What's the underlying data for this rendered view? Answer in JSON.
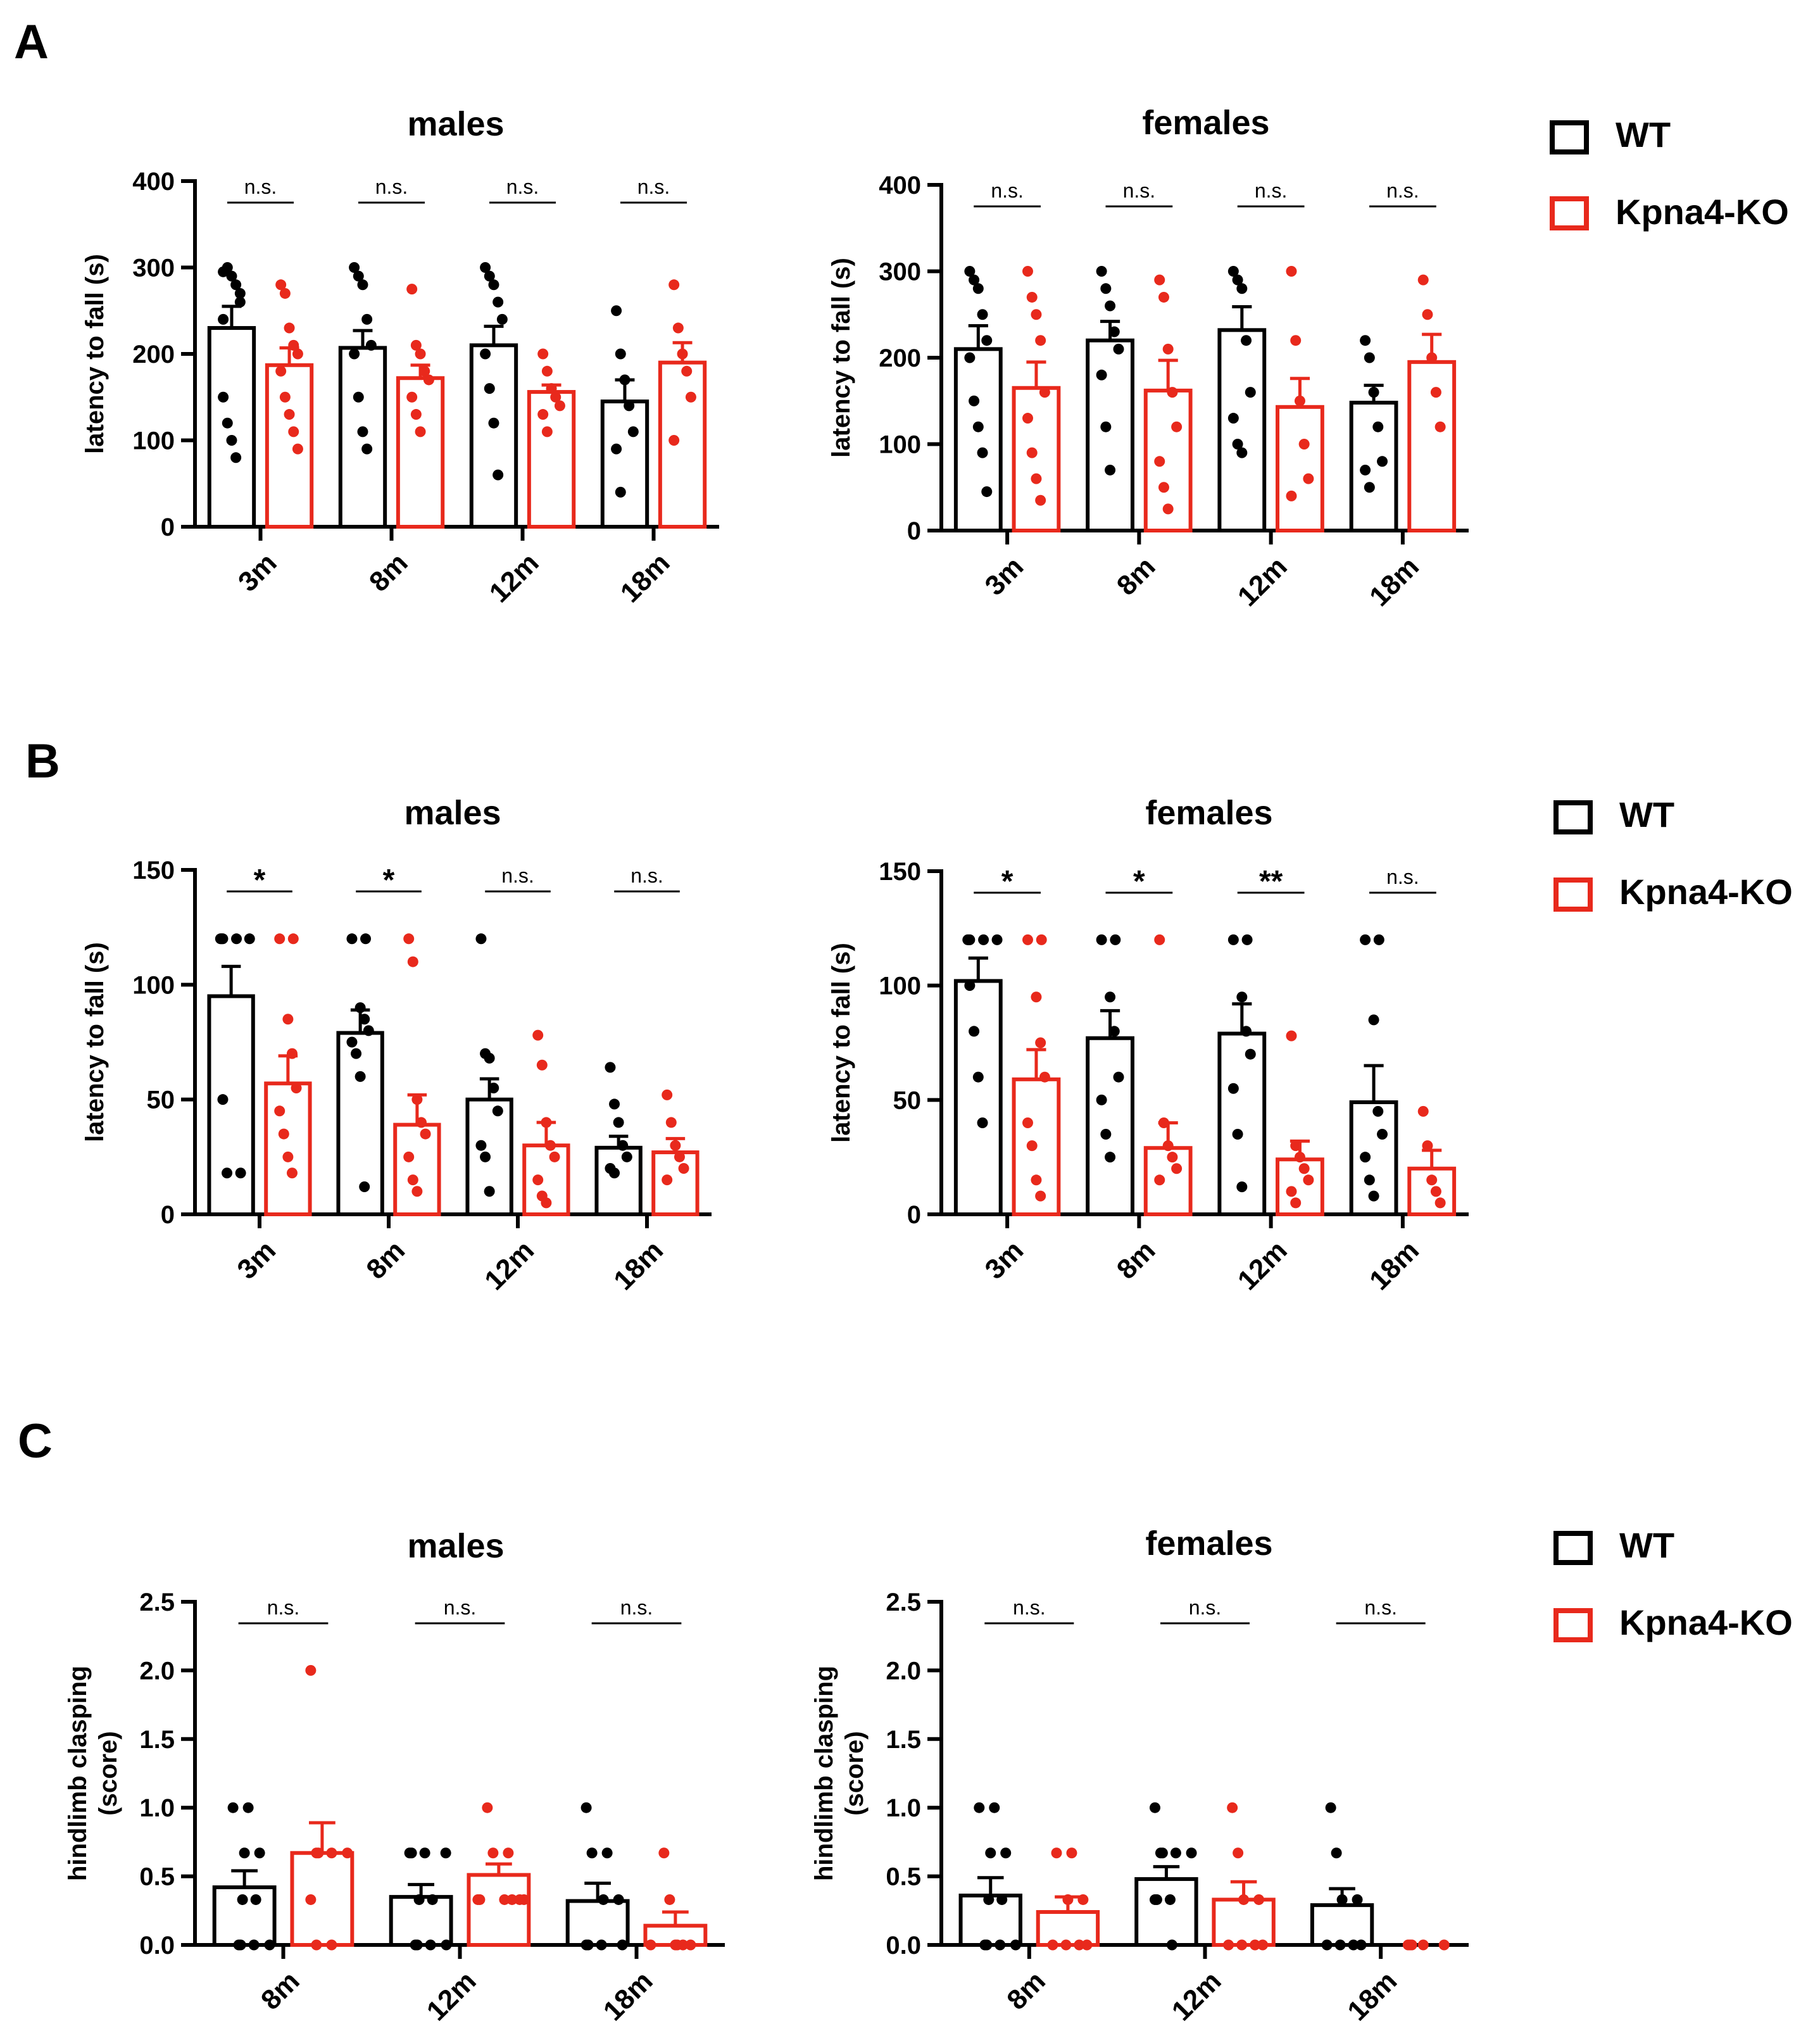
{
  "colors": {
    "wt": "#000000",
    "ko": "#e8291c"
  },
  "panel_labels": [
    "A",
    "B",
    "C"
  ],
  "legend": {
    "wt_label": "WT",
    "ko_label": "Kpna4-KO"
  },
  "chart_data": [
    {
      "id": "A-males",
      "type": "bar",
      "panel": "A",
      "title": "males",
      "ylabel": "latency to fall (s)",
      "ylim": [
        0,
        400
      ],
      "yticks": [
        0,
        100,
        200,
        300,
        400
      ],
      "yticklabels": [
        "0",
        "100",
        "200",
        "300",
        "400"
      ],
      "categories": [
        "3m",
        "8m",
        "12m",
        "18m"
      ],
      "series": [
        {
          "name": "WT",
          "color": "#000000",
          "values": [
            230,
            207,
            210,
            145
          ],
          "sem": [
            25,
            20,
            22,
            25
          ],
          "points": [
            [
              295,
              300,
              290,
              280,
              270,
              150,
              120,
              100,
              80,
              260,
              240
            ],
            [
              300,
              290,
              280,
              240,
              210,
              200,
              150,
              110,
              90
            ],
            [
              300,
              290,
              280,
              260,
              240,
              200,
              160,
              120,
              60
            ],
            [
              250,
              200,
              170,
              140,
              110,
              90,
              40
            ]
          ]
        },
        {
          "name": "Kpna4-KO",
          "color": "#e8291c",
          "values": [
            187,
            172,
            156,
            190
          ],
          "sem": [
            20,
            15,
            8,
            23
          ],
          "points": [
            [
              280,
              270,
              230,
              210,
              200,
              180,
              150,
              130,
              110,
              90
            ],
            [
              275,
              210,
              200,
              180,
              170,
              150,
              130,
              110
            ],
            [
              200,
              180,
              160,
              150,
              140,
              130,
              110
            ],
            [
              280,
              230,
              200,
              180,
              150,
              100
            ]
          ]
        }
      ],
      "significance": [
        "n.s.",
        "n.s.",
        "n.s.",
        "n.s."
      ]
    },
    {
      "id": "A-females",
      "type": "bar",
      "panel": "A",
      "title": "females",
      "ylabel": "latency to fall (s)",
      "ylim": [
        0,
        400
      ],
      "yticks": [
        0,
        100,
        200,
        300,
        400
      ],
      "yticklabels": [
        "0",
        "100",
        "200",
        "300",
        "400"
      ],
      "categories": [
        "3m",
        "8m",
        "12m",
        "18m"
      ],
      "series": [
        {
          "name": "WT",
          "color": "#000000",
          "values": [
            210,
            220,
            232,
            148
          ],
          "sem": [
            27,
            22,
            27,
            20
          ],
          "points": [
            [
              300,
              290,
              280,
              250,
              220,
              200,
              150,
              120,
              90,
              45
            ],
            [
              300,
              280,
              260,
              230,
              210,
              180,
              120,
              70
            ],
            [
              300,
              290,
              280,
              220,
              160,
              130,
              100,
              90
            ],
            [
              220,
              200,
              160,
              120,
              80,
              70,
              50
            ]
          ]
        },
        {
          "name": "Kpna4-KO",
          "color": "#e8291c",
          "values": [
            165,
            162,
            143,
            195
          ],
          "sem": [
            30,
            35,
            33,
            32
          ],
          "points": [
            [
              300,
              270,
              250,
              220,
              160,
              130,
              90,
              60,
              35
            ],
            [
              290,
              270,
              210,
              160,
              120,
              80,
              50,
              25
            ],
            [
              300,
              220,
              150,
              100,
              60,
              40
            ],
            [
              290,
              250,
              200,
              160,
              120
            ]
          ]
        }
      ],
      "significance": [
        "n.s.",
        "n.s.",
        "n.s.",
        "n.s."
      ]
    },
    {
      "id": "B-males",
      "type": "bar",
      "panel": "B",
      "title": "males",
      "ylabel": "latency to fall (s)",
      "ylim": [
        0,
        150
      ],
      "yticks": [
        0,
        50,
        100,
        150
      ],
      "yticklabels": [
        "0",
        "50",
        "100",
        "150"
      ],
      "categories": [
        "3m",
        "8m",
        "12m",
        "18m"
      ],
      "series": [
        {
          "name": "WT",
          "color": "#000000",
          "values": [
            95,
            79,
            50,
            29
          ],
          "sem": [
            13,
            10,
            9,
            5
          ],
          "points": [
            [
              120,
              120,
              120,
              120,
              120,
              50,
              18,
              18
            ],
            [
              120,
              120,
              90,
              85,
              80,
              75,
              70,
              60,
              12
            ],
            [
              120,
              70,
              68,
              55,
              45,
              30,
              25,
              10
            ],
            [
              64,
              48,
              40,
              30,
              25,
              20,
              18
            ]
          ]
        },
        {
          "name": "Kpna4-KO",
          "color": "#e8291c",
          "values": [
            57,
            39,
            30,
            27
          ],
          "sem": [
            12,
            13,
            10,
            6
          ],
          "points": [
            [
              120,
              120,
              85,
              70,
              55,
              45,
              35,
              25,
              18
            ],
            [
              120,
              110,
              50,
              40,
              35,
              25,
              15,
              10
            ],
            [
              78,
              65,
              40,
              30,
              25,
              15,
              8,
              5
            ],
            [
              52,
              40,
              30,
              25,
              20,
              15
            ]
          ]
        }
      ],
      "significance": [
        "*",
        "*",
        "n.s.",
        "n.s."
      ]
    },
    {
      "id": "B-females",
      "type": "bar",
      "panel": "B",
      "title": "females",
      "ylabel": "latency to fall (s)",
      "ylim": [
        0,
        150
      ],
      "yticks": [
        0,
        50,
        100,
        150
      ],
      "yticklabels": [
        "0",
        "50",
        "100",
        "150"
      ],
      "categories": [
        "3m",
        "8m",
        "12m",
        "18m"
      ],
      "series": [
        {
          "name": "WT",
          "color": "#000000",
          "values": [
            102,
            77,
            79,
            49
          ],
          "sem": [
            10,
            12,
            13,
            16
          ],
          "points": [
            [
              120,
              120,
              120,
              120,
              120,
              100,
              80,
              60,
              40
            ],
            [
              120,
              120,
              95,
              80,
              60,
              50,
              35,
              25
            ],
            [
              120,
              120,
              95,
              80,
              70,
              55,
              35,
              12
            ],
            [
              120,
              120,
              85,
              45,
              35,
              25,
              15,
              8
            ]
          ]
        },
        {
          "name": "Kpna4-KO",
          "color": "#e8291c",
          "values": [
            59,
            29,
            24,
            20
          ],
          "sem": [
            13,
            11,
            8,
            8
          ],
          "points": [
            [
              120,
              120,
              95,
              75,
              60,
              40,
              30,
              15,
              8
            ],
            [
              120,
              40,
              30,
              25,
              20,
              15
            ],
            [
              78,
              30,
              25,
              20,
              15,
              10,
              5
            ],
            [
              45,
              30,
              15,
              10,
              5
            ]
          ]
        }
      ],
      "significance": [
        "*",
        "*",
        "**",
        "n.s."
      ]
    },
    {
      "id": "C-males",
      "type": "bar",
      "panel": "C",
      "title": "males",
      "ylabel": "hindlimb clasping",
      "ylabel2": "(score)",
      "ylim": [
        0,
        2.5
      ],
      "yticks": [
        0,
        0.5,
        1.0,
        1.5,
        2.0,
        2.5
      ],
      "yticklabels": [
        "0.0",
        "0.5",
        "1.0",
        "1.5",
        "2.0",
        "2.5"
      ],
      "categories": [
        "8m",
        "12m",
        "18m"
      ],
      "series": [
        {
          "name": "WT",
          "color": "#000000",
          "values": [
            0.42,
            0.35,
            0.32
          ],
          "sem": [
            0.12,
            0.09,
            0.13
          ],
          "points": [
            [
              1,
              1,
              0.67,
              0.67,
              0.33,
              0.33,
              0,
              0,
              0,
              0
            ],
            [
              0.67,
              0.67,
              0.67,
              0.67,
              0.33,
              0.33,
              0,
              0,
              0,
              0
            ],
            [
              1,
              0.67,
              0.67,
              0.33,
              0.33,
              0,
              0,
              0,
              0
            ]
          ]
        },
        {
          "name": "Kpna4-KO",
          "color": "#e8291c",
          "values": [
            0.67,
            0.51,
            0.14
          ],
          "sem": [
            0.22,
            0.08,
            0.1
          ],
          "points": [
            [
              2,
              0.67,
              0.67,
              0.67,
              0.67,
              0.33,
              0,
              0
            ],
            [
              1,
              0.67,
              0.67,
              0.33,
              0.33,
              0.33,
              0.33,
              0.33,
              0.33
            ],
            [
              0.67,
              0.33,
              0,
              0,
              0,
              0,
              0
            ]
          ]
        }
      ],
      "significance": [
        "n.s.",
        "n.s.",
        "n.s."
      ]
    },
    {
      "id": "C-females",
      "type": "bar",
      "panel": "C",
      "title": "females",
      "ylabel": "hindlimb clasping",
      "ylabel2": "(score)",
      "ylim": [
        0,
        2.5
      ],
      "yticks": [
        0,
        0.5,
        1.0,
        1.5,
        2.0,
        2.5
      ],
      "yticklabels": [
        "0.0",
        "0.5",
        "1.0",
        "1.5",
        "2.0",
        "2.5"
      ],
      "categories": [
        "8m",
        "12m",
        "18m"
      ],
      "series": [
        {
          "name": "WT",
          "color": "#000000",
          "values": [
            0.36,
            0.48,
            0.29
          ],
          "sem": [
            0.13,
            0.09,
            0.12
          ],
          "points": [
            [
              1,
              1,
              0.67,
              0.67,
              0.33,
              0.33,
              0,
              0,
              0,
              0
            ],
            [
              1,
              0.67,
              0.67,
              0.67,
              0.67,
              0.33,
              0.33,
              0.33,
              0
            ],
            [
              1,
              0.67,
              0.33,
              0.33,
              0,
              0,
              0,
              0
            ]
          ]
        },
        {
          "name": "Kpna4-KO",
          "color": "#e8291c",
          "values": [
            0.24,
            0.33,
            0
          ],
          "sem": [
            0.11,
            0.13,
            0
          ],
          "points": [
            [
              0.67,
              0.67,
              0.33,
              0.33,
              0,
              0,
              0,
              0
            ],
            [
              1,
              0.67,
              0.33,
              0.33,
              0,
              0,
              0,
              0
            ],
            [
              0,
              0,
              0,
              0,
              0
            ]
          ]
        }
      ],
      "significance": [
        "n.s.",
        "n.s.",
        "n.s."
      ]
    }
  ]
}
